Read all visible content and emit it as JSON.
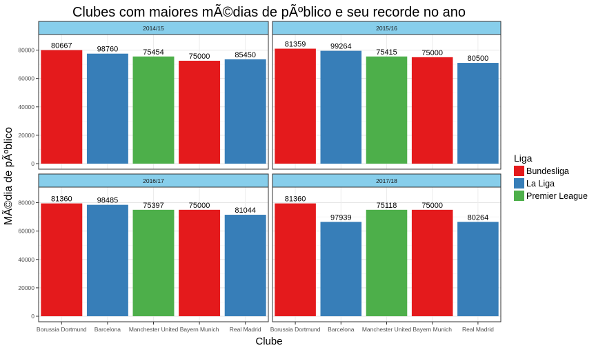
{
  "chart_data": {
    "type": "bar",
    "title": "Clubes com maiores mÃ©dias de pÃºblico e seu recorde no ano",
    "xlabel": "Clube",
    "ylabel": "MÃ©dia de pÃºblico",
    "ylim": [
      0,
      90000
    ],
    "y_ticks": [
      "0",
      "20000",
      "40000",
      "60000",
      "80000"
    ],
    "grid": true,
    "categories": [
      "Borussia Dortmund",
      "Barcelona",
      "Manchester United",
      "Bayern Munich",
      "Real Madrid"
    ],
    "legend": {
      "title": "Liga",
      "position": "right",
      "items": [
        {
          "name": "Bundesliga",
          "color": "#E41A1C"
        },
        {
          "name": "La Liga",
          "color": "#377EB8"
        },
        {
          "name": "Premier League",
          "color": "#4DAF4A"
        }
      ]
    },
    "panels": [
      {
        "label": "2014/15",
        "values": [
          80000,
          77500,
          75500,
          72500,
          73500
        ],
        "records": [
          "80667",
          "98760",
          "75454",
          "75000",
          "85450"
        ],
        "ligas": [
          "Bundesliga",
          "La Liga",
          "Premier League",
          "Bundesliga",
          "La Liga"
        ]
      },
      {
        "label": "2015/16",
        "values": [
          81000,
          79500,
          75500,
          75000,
          71000
        ],
        "records": [
          "81359",
          "99264",
          "75415",
          "75000",
          "80500"
        ],
        "ligas": [
          "Bundesliga",
          "La Liga",
          "Premier League",
          "Bundesliga",
          "La Liga"
        ]
      },
      {
        "label": "2016/17",
        "values": [
          79500,
          78500,
          75000,
          75000,
          71500
        ],
        "records": [
          "81360",
          "98485",
          "75397",
          "75000",
          "81044"
        ],
        "ligas": [
          "Bundesliga",
          "La Liga",
          "Premier League",
          "Bundesliga",
          "La Liga"
        ]
      },
      {
        "label": "2017/18",
        "values": [
          79500,
          66500,
          75000,
          75000,
          66500
        ],
        "records": [
          "81360",
          "97939",
          "75118",
          "75000",
          "80264"
        ],
        "ligas": [
          "Bundesliga",
          "La Liga",
          "Premier League",
          "Bundesliga",
          "La Liga"
        ]
      }
    ]
  }
}
